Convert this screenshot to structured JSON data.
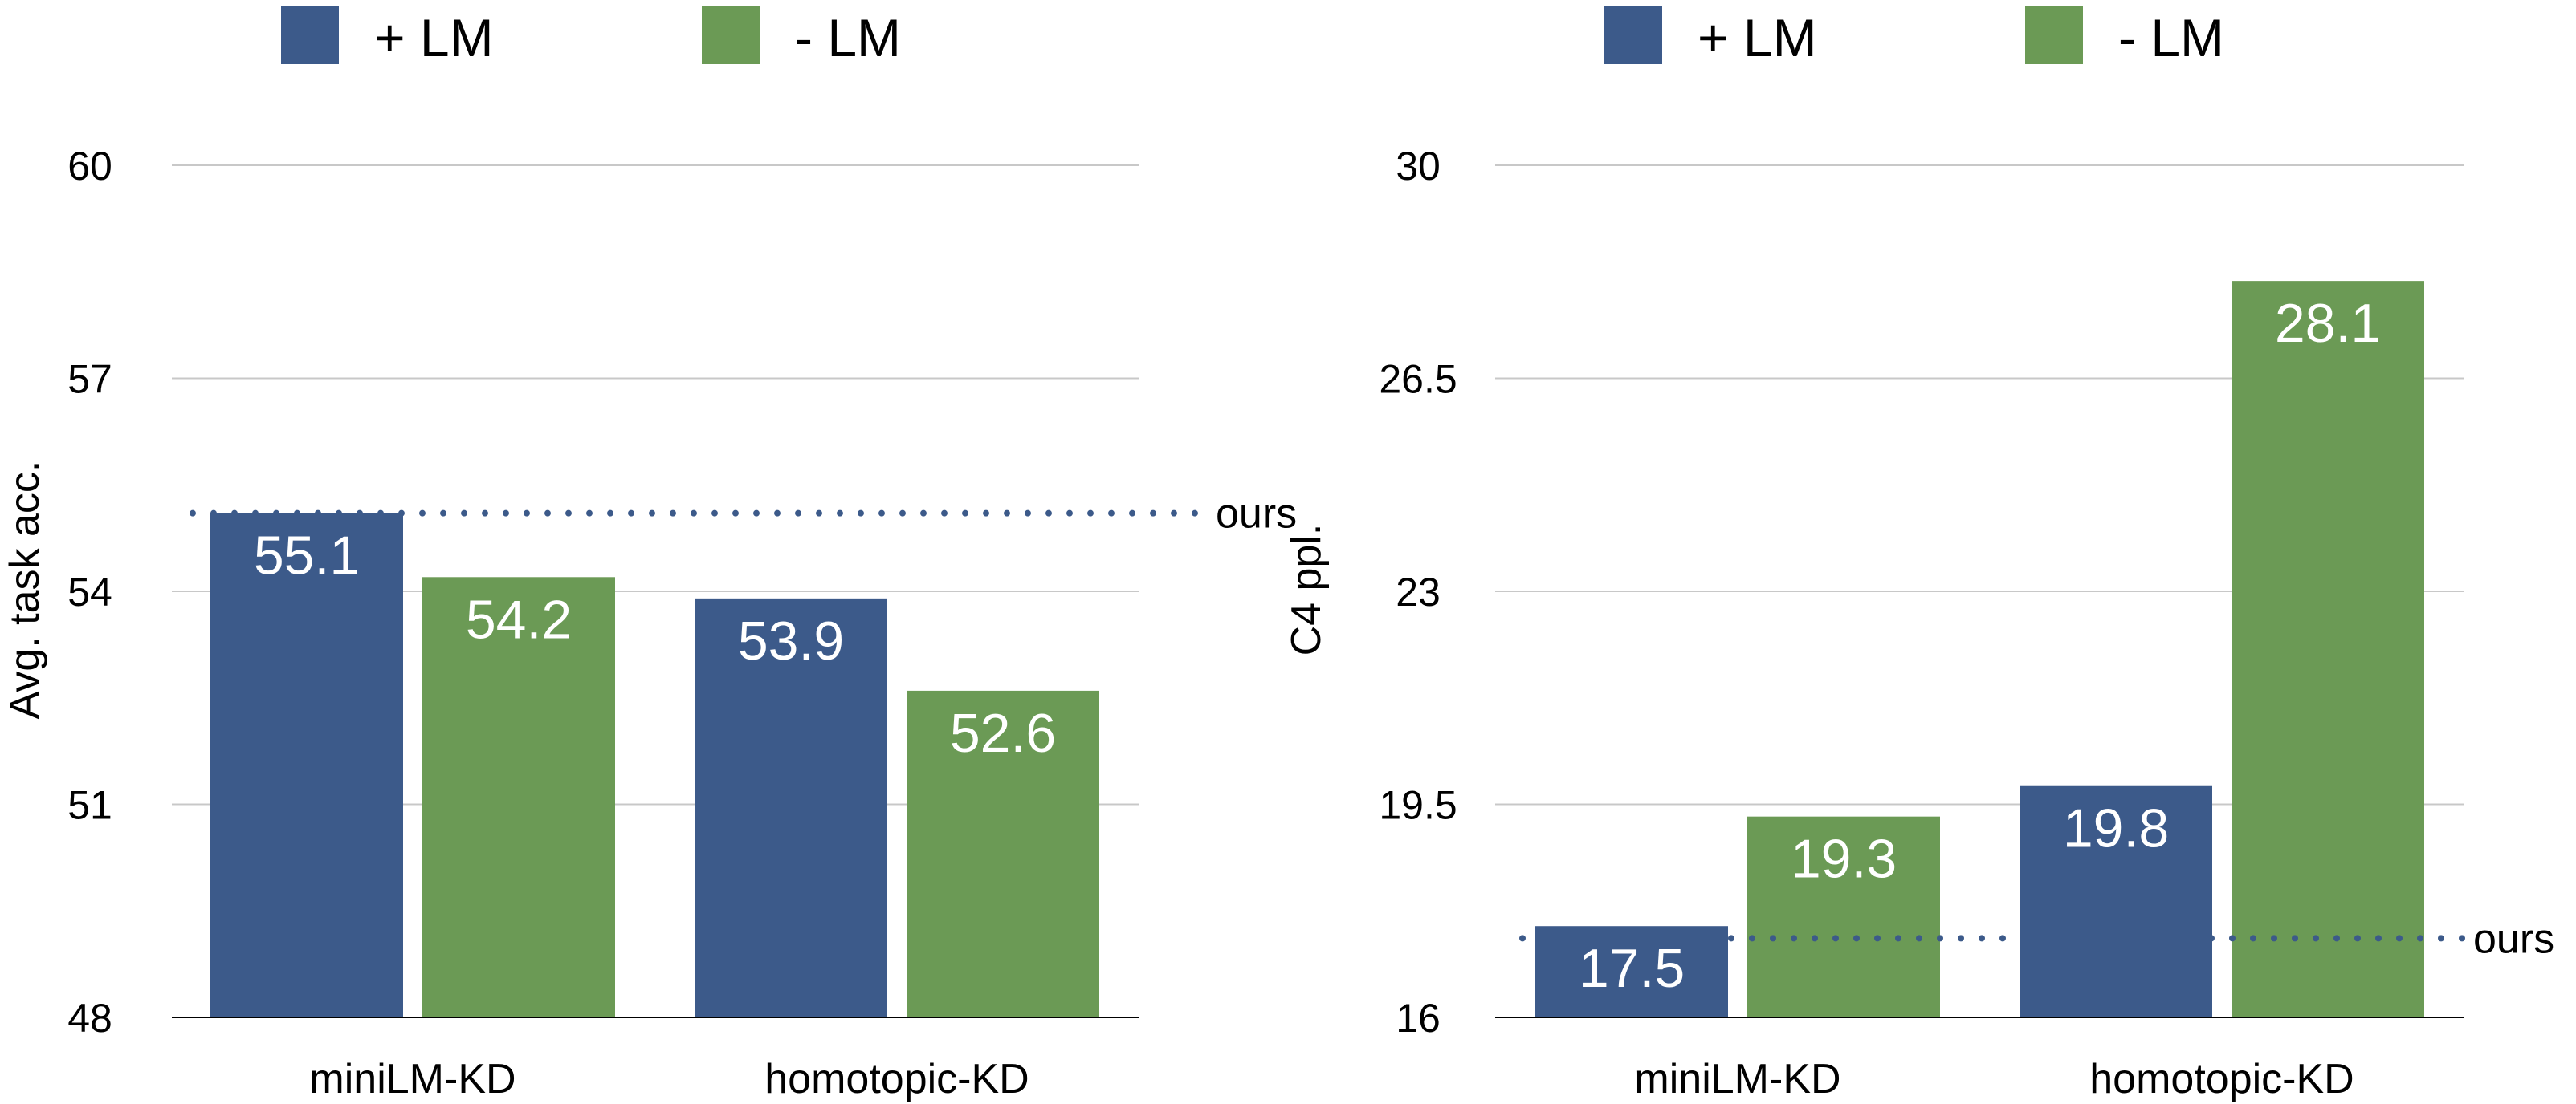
{
  "colors": {
    "plus_lm": "#3c5a8a",
    "minus_lm": "#6b9a55",
    "grid": "#c8c8c8",
    "reference": "#3c5a8a"
  },
  "chart_data": [
    {
      "type": "bar",
      "title": "",
      "xlabel": "",
      "ylabel": "Avg. task acc.",
      "categories": [
        "miniLM-KD",
        "homotopic-KD"
      ],
      "series": [
        {
          "name": "+ LM",
          "values": [
            55.1,
            53.9
          ]
        },
        {
          "name": "- LM",
          "values": [
            54.2,
            52.6
          ]
        }
      ],
      "value_labels": [
        [
          "55.1",
          "53.9"
        ],
        [
          "54.2",
          "52.6"
        ]
      ],
      "ylim": [
        48,
        60
      ],
      "yticks": [
        48,
        51,
        54,
        57,
        60
      ],
      "ytick_labels": [
        "48",
        "51",
        "54",
        "57",
        "60"
      ],
      "grid": true,
      "legend": {
        "position": "top",
        "entries": [
          "+ LM",
          "- LM"
        ]
      },
      "reference_line": {
        "label": "ours",
        "value": 55.1,
        "style": "dotted"
      }
    },
    {
      "type": "bar",
      "title": "",
      "xlabel": "",
      "ylabel": "C4 ppl.",
      "categories": [
        "miniLM-KD",
        "homotopic-KD"
      ],
      "series": [
        {
          "name": "+ LM",
          "values": [
            17.5,
            19.8
          ]
        },
        {
          "name": "- LM",
          "values": [
            19.3,
            28.1
          ]
        }
      ],
      "value_labels": [
        [
          "17.5",
          "19.8"
        ],
        [
          "19.3",
          "28.1"
        ]
      ],
      "ylim": [
        16,
        30
      ],
      "yticks": [
        16,
        19.5,
        23,
        26.5,
        30
      ],
      "ytick_labels": [
        "16",
        "19.5",
        "23",
        "26.5",
        "30"
      ],
      "grid": true,
      "legend": {
        "position": "top",
        "entries": [
          "+ LM",
          "- LM"
        ]
      },
      "reference_line": {
        "label": "ours",
        "value": 17.3,
        "style": "dotted"
      }
    }
  ]
}
